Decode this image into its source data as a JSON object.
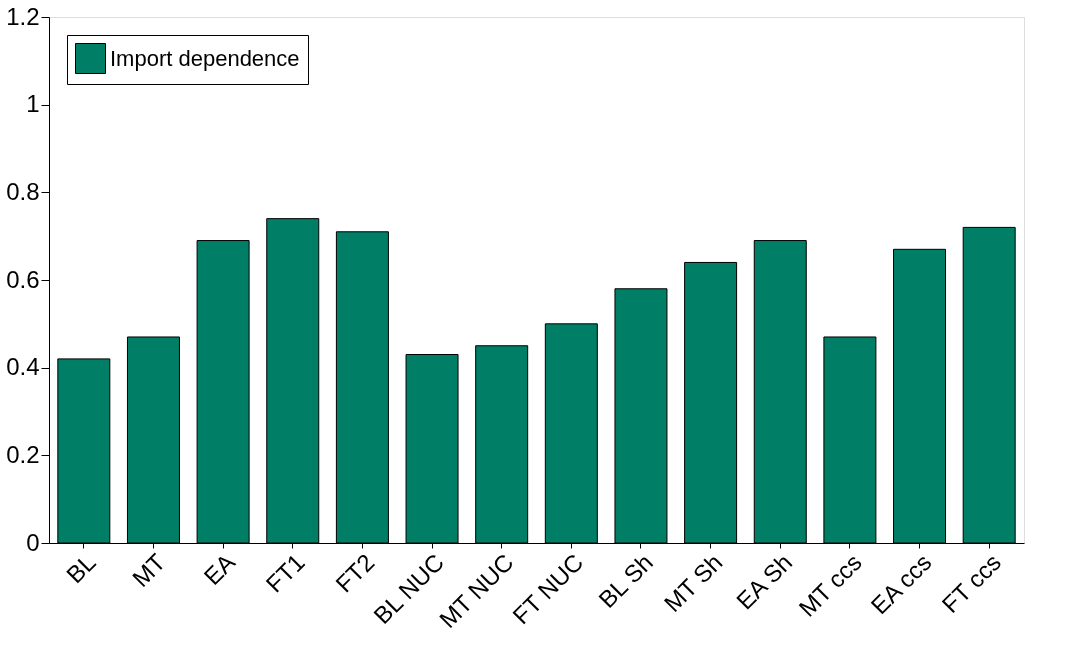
{
  "chart_data": {
    "type": "bar",
    "categories": [
      "BL",
      "MT",
      "EA",
      "FT1",
      "FT2",
      "BL NUC",
      "MT NUC",
      "FT NUC",
      "BL Sh",
      "MT Sh",
      "EA Sh",
      "MT ccs",
      "EA ccs",
      "FT ccs"
    ],
    "series": [
      {
        "name": "Import dependence",
        "color": "#007f66",
        "values": [
          0.42,
          0.47,
          0.69,
          0.74,
          0.71,
          0.43,
          0.45,
          0.5,
          0.58,
          0.64,
          0.69,
          0.47,
          0.67,
          0.72
        ]
      }
    ],
    "ylim": [
      0,
      1.2
    ],
    "yticks": [
      0,
      0.2,
      0.4,
      0.6,
      0.8,
      1,
      1.2
    ],
    "grid": false,
    "legend": "top left"
  }
}
